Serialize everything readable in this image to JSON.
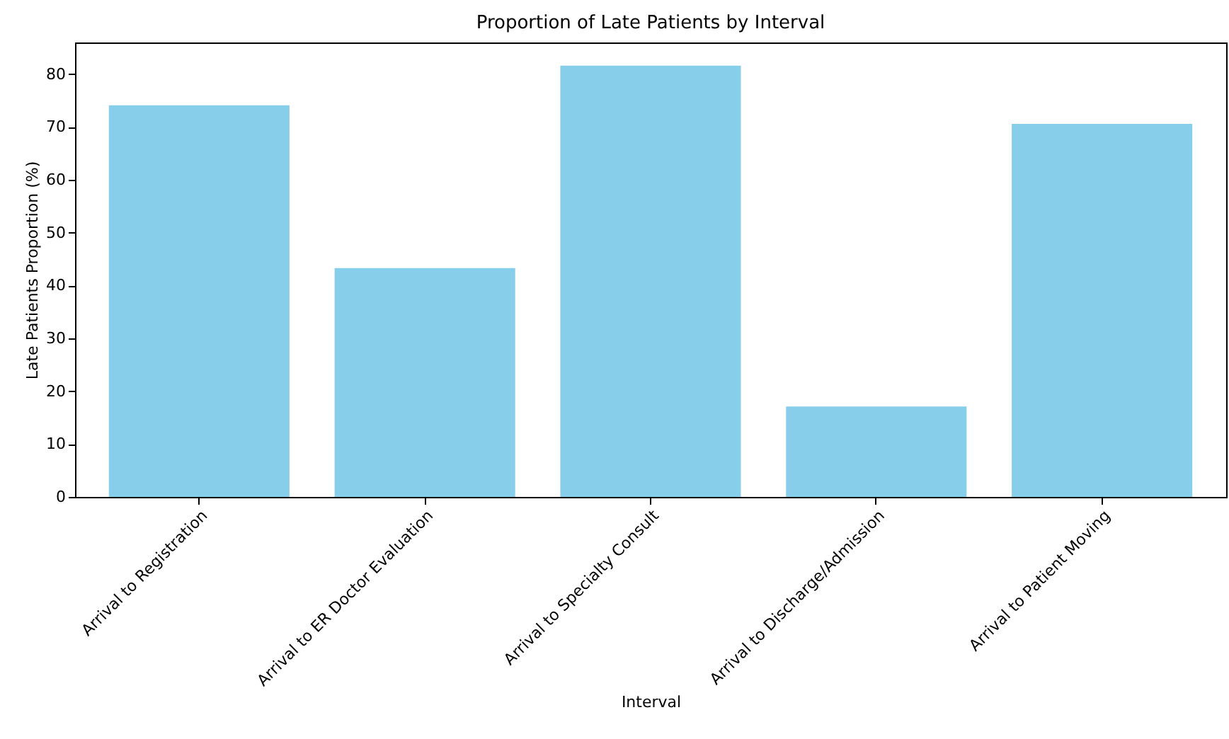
{
  "chart_data": {
    "type": "bar",
    "title": "Proportion of Late Patients by Interval",
    "xlabel": "Interval",
    "ylabel": "Late Patients Proportion (%)",
    "categories": [
      "Arrival to Registration",
      "Arrival to ER Doctor Evaluation",
      "Arrival to Specialty Consult",
      "Arrival to Discharge/Admission",
      "Arrival to Patient Moving"
    ],
    "values": [
      74.1,
      43.3,
      81.6,
      17.1,
      70.6
    ],
    "color": "#87ceeb",
    "ylim": [
      0,
      86
    ],
    "yticks": [
      0,
      10,
      20,
      30,
      40,
      50,
      60,
      70,
      80
    ],
    "grid": false
  }
}
